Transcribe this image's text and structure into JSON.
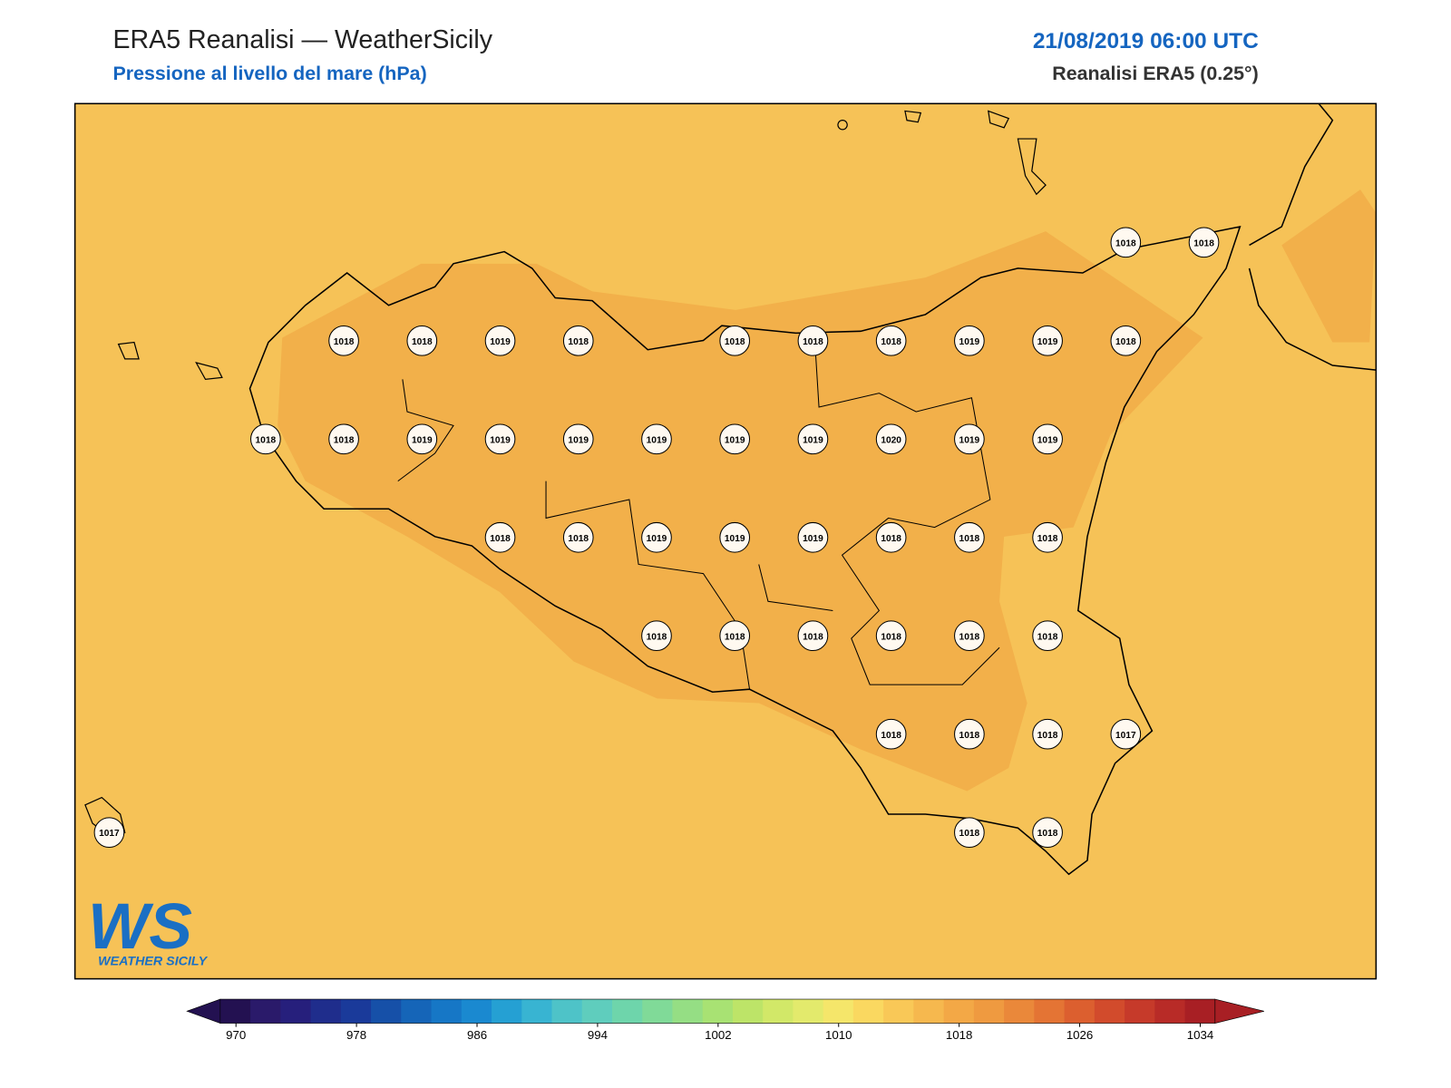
{
  "header": {
    "title": "ERA5 Reanalisi — WeatherSicily",
    "subtitle": "Pressione al livello del mare (hPa)",
    "datetime": "21/08/2019 06:00 UTC",
    "source": "Reanalisi ERA5 (0.25°)"
  },
  "stations": [
    1018,
    1018,
    1018,
    1018,
    1019,
    1018,
    1018,
    1018,
    1018,
    1019,
    1019,
    1018,
    1018,
    1018,
    1019,
    1019,
    1019,
    1019,
    1019,
    1019,
    1020,
    1019,
    1019,
    1018,
    1018,
    1019,
    1019,
    1019,
    1018,
    1018,
    1018,
    1018,
    1018,
    1018,
    1018,
    1018,
    1018,
    1018,
    1018,
    1018,
    1017,
    1017,
    1018,
    1018
  ],
  "logo": {
    "mark": "WS",
    "text": "WEATHER SICILY"
  },
  "colorbar": {
    "ticks": [
      970,
      978,
      986,
      994,
      1002,
      1010,
      1018,
      1026,
      1034
    ],
    "colors": [
      "#231151",
      "#2a1a6a",
      "#261f7c",
      "#1f2d8c",
      "#1a3a9a",
      "#1650a8",
      "#1565b8",
      "#1677c6",
      "#1a89d0",
      "#25a0d3",
      "#38b4d2",
      "#4ec3c8",
      "#5fcdbd",
      "#6ed5ab",
      "#80da98",
      "#95de84",
      "#a8e273",
      "#bde468",
      "#d2e868",
      "#e3ea6c",
      "#f5e66a",
      "#fad860",
      "#f9c857",
      "#f6b84e",
      "#f3a846",
      "#ef9a40",
      "#ea883a",
      "#e47434",
      "#dc5f2f",
      "#d24b2c",
      "#c63a2a",
      "#b82b27",
      "#a81f24"
    ]
  }
}
